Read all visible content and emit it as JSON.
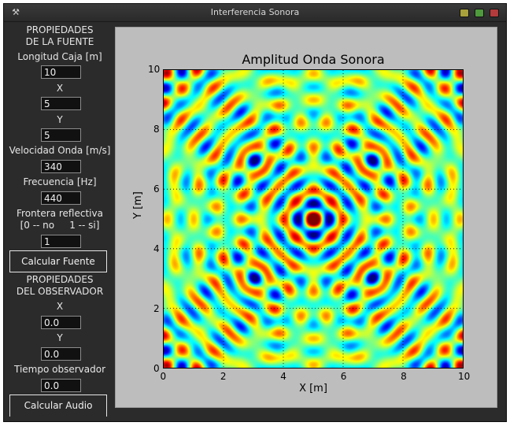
{
  "window": {
    "title": "Interferencia Sonora",
    "icon": "tool-icon"
  },
  "sidebar": {
    "source_header_1": "PROPIEDADES",
    "source_header_2": "DE LA FUENTE",
    "box_length_label": "Longitud Caja [m]",
    "box_length_value": "10",
    "x_label": "X",
    "x_value": "5",
    "y_label": "Y",
    "y_value": "5",
    "speed_label": "Velocidad Onda [m/s]",
    "speed_value": "340",
    "freq_label": "Frecuencia [Hz]",
    "freq_value": "440",
    "border_label_1": "Frontera reflectiva",
    "border_label_2": "[0 -- no     1 -- si]",
    "border_value": "1",
    "calc_source_button": "Calcular Fuente",
    "observer_header_1": "PROPIEDADES",
    "observer_header_2": "DEL OBSERVADOR",
    "obs_x_label": "X",
    "obs_x_value": "0.0",
    "obs_y_label": "Y",
    "obs_y_value": "0.0",
    "obs_time_label": "Tiempo observador",
    "obs_time_value": "0.0",
    "calc_audio_button": "Calcular Audio"
  },
  "chart_data": {
    "type": "heatmap",
    "title": "Amplitud Onda Sonora",
    "xlabel": "X [m]",
    "ylabel": "Y [m]",
    "xlim": [
      0,
      10
    ],
    "ylim": [
      0,
      10
    ],
    "xticks": [
      "0",
      "2",
      "4",
      "6",
      "8",
      "10"
    ],
    "yticks": [
      "0",
      "2",
      "4",
      "6",
      "8",
      "10"
    ],
    "grid": true,
    "colormap": "jet",
    "source": {
      "x": 5,
      "y": 5
    },
    "frequency_hz": 440,
    "speed_mps": 340
  }
}
